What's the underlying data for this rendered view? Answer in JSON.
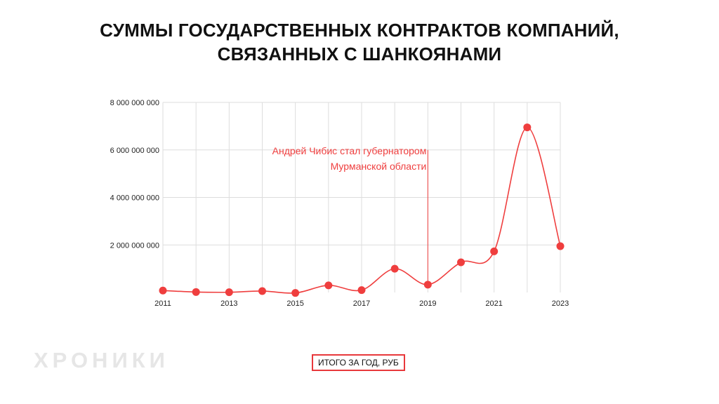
{
  "title_line1": "СУММЫ ГОСУДАРСТВЕННЫХ КОНТРАКТОВ КОМПАНИЙ,",
  "title_line2": "СВЯЗАННЫХ С ШАНКОЯНАМИ",
  "logo_text": "ХРОНИКИ",
  "legend_label": "ИТОГО ЗА ГОД, РУБ",
  "colors": {
    "series": "#ef3e3e",
    "annotation": "#ef3e3e",
    "grid": "#dddddd",
    "legend_border": "#e8383b",
    "logo": "#e6e6e6"
  },
  "chart_data": {
    "type": "line",
    "x": [
      2011,
      2012,
      2013,
      2014,
      2015,
      2016,
      2017,
      2018,
      2019,
      2020,
      2021,
      2022,
      2023
    ],
    "series": [
      {
        "name": "ИТОГО ЗА ГОД, РУБ",
        "values": [
          80000000,
          20000000,
          10000000,
          60000000,
          -20000000,
          300000000,
          100000000,
          1000000000,
          330000000,
          1270000000,
          1730000000,
          6950000000,
          1950000000
        ]
      }
    ],
    "x_ticks": [
      "2011",
      "2013",
      "2015",
      "2017",
      "2019",
      "2021",
      "2023"
    ],
    "y_ticks": [
      "8 000 000 000",
      "6 000 000 000",
      "4 000 000 000",
      "2 000 000 000"
    ],
    "ylim": [
      0,
      8000000000
    ],
    "xlim": [
      2011,
      2023
    ],
    "grid": true,
    "legend_position": "bottom-center",
    "annotation": {
      "x": 2019,
      "y_top": 6000000000,
      "line1": "Андрей Чибис стал губернатором",
      "line2": "Мурманской области"
    }
  }
}
